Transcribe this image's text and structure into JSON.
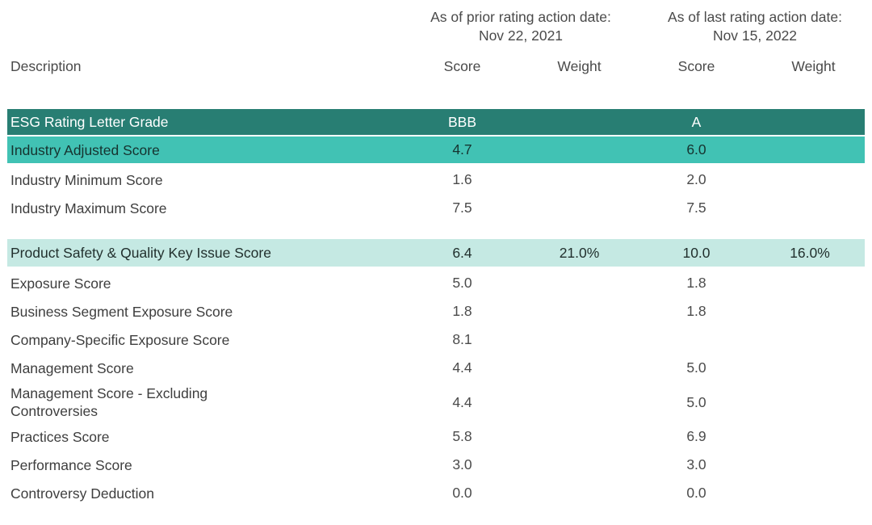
{
  "colors": {
    "dark_teal": "#287E73",
    "medium_teal": "#41C2B4",
    "light_mint": "#C5E9E3",
    "header_text": "#4a4a4a",
    "body_text": "#3e3e3e",
    "white_text": "#ffffff"
  },
  "header": {
    "description_label": "Description",
    "groups": [
      {
        "title": "As of prior rating action date:",
        "date": "Nov 22, 2021",
        "score_label": "Score",
        "weight_label": "Weight"
      },
      {
        "title": "As of last rating action date:",
        "date": "Nov 15, 2022",
        "score_label": "Score",
        "weight_label": "Weight"
      }
    ]
  },
  "chart_data": {
    "type": "table",
    "title": "ESG Rating scores and weights as of prior and last rating action dates",
    "column_groups": [
      "As of prior rating action date: Nov 22, 2021",
      "As of last rating action date: Nov 15, 2022"
    ],
    "columns": [
      "Description",
      "Score",
      "Weight",
      "Score",
      "Weight"
    ],
    "rows": [
      {
        "label": "ESG Rating Letter Grade",
        "cells": [
          "BBB",
          "",
          "A",
          ""
        ],
        "highlight": "dark"
      },
      {
        "label": "Industry Adjusted Score",
        "cells": [
          "4.7",
          "",
          "6.0",
          ""
        ],
        "highlight": "medium"
      },
      {
        "label": "Industry Minimum Score",
        "cells": [
          "1.6",
          "",
          "2.0",
          ""
        ],
        "highlight": "plain"
      },
      {
        "label": "Industry Maximum Score",
        "cells": [
          "7.5",
          "",
          "7.5",
          ""
        ],
        "highlight": "plain"
      },
      {
        "label": "Product Safety & Quality Key Issue Score",
        "cells": [
          "6.4",
          "21.0%",
          "10.0",
          "16.0%"
        ],
        "highlight": "light",
        "spacer_before": true
      },
      {
        "label": "Exposure Score",
        "cells": [
          "5.0",
          "",
          "1.8",
          ""
        ],
        "highlight": "plain"
      },
      {
        "label": "Business Segment Exposure Score",
        "cells": [
          "1.8",
          "",
          "1.8",
          ""
        ],
        "highlight": "plain"
      },
      {
        "label": "Company-Specific Exposure Score",
        "cells": [
          "8.1",
          "",
          "",
          ""
        ],
        "highlight": "plain"
      },
      {
        "label": "Management Score",
        "cells": [
          "4.4",
          "",
          "5.0",
          ""
        ],
        "highlight": "plain"
      },
      {
        "label": "Management Score - Excluding\nControversies",
        "cells": [
          "4.4",
          "",
          "5.0",
          ""
        ],
        "highlight": "plain"
      },
      {
        "label": "Practices Score",
        "cells": [
          "5.8",
          "",
          "6.9",
          ""
        ],
        "highlight": "plain"
      },
      {
        "label": "Performance Score",
        "cells": [
          "3.0",
          "",
          "3.0",
          ""
        ],
        "highlight": "plain"
      },
      {
        "label": "Controversy Deduction",
        "cells": [
          "0.0",
          "",
          "0.0",
          ""
        ],
        "highlight": "plain"
      }
    ]
  }
}
